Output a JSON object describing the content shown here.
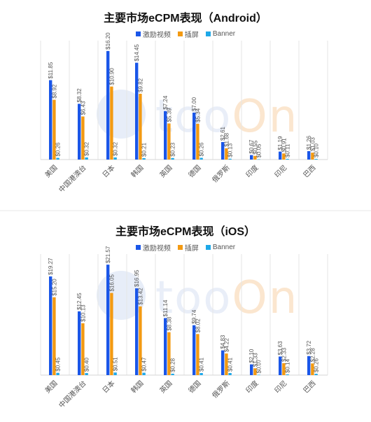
{
  "watermark": {
    "text_a": "too",
    "text_b": "On"
  },
  "chart_data": [
    {
      "type": "bar",
      "title": "主要市场eCPM表现（Android）",
      "categories": [
        "美国",
        "中国港澳台",
        "日本",
        "韩国",
        "英国",
        "德国",
        "俄罗斯",
        "印度",
        "印尼",
        "巴西"
      ],
      "ylim": [
        0,
        16.5
      ],
      "grid": "vertical separators",
      "legend": "top",
      "series": [
        {
          "name": "激励视频",
          "color": "#1a56e8",
          "values": [
            11.85,
            8.32,
            16.2,
            14.45,
            7.24,
            7.0,
            2.61,
            0.67,
            1.19,
            1.26
          ],
          "labels": [
            "$11.85",
            "$8.32",
            "$16.20",
            "$14.45",
            "$7.24",
            "$7.00",
            "$2.61",
            "$0.67",
            "$1.19",
            "$1.26"
          ]
        },
        {
          "name": "插屏",
          "color": "#f39a12",
          "values": [
            8.92,
            6.43,
            10.9,
            9.82,
            5.39,
            5.34,
            1.68,
            0.55,
            0.91,
            1.03
          ],
          "labels": [
            "$8.92",
            "$6.43",
            "$10.90",
            "$9.82",
            "$5.39",
            "$5.34",
            "$1.68",
            "$0.55",
            "$0.91",
            "$1.03"
          ]
        },
        {
          "name": "Banner",
          "color": "#1ea8e8",
          "values": [
            0.26,
            0.32,
            0.32,
            0.21,
            0.23,
            0.26,
            0.13,
            0.05,
            0.11,
            0.1
          ],
          "labels": [
            "$0.26",
            "$0.32",
            "$0.32",
            "$0.21",
            "$0.23",
            "$0.26",
            "$0.13",
            "$0.05",
            "$0.11",
            "$0.10"
          ]
        }
      ]
    },
    {
      "type": "bar",
      "title": "主要市场eCPM表现（iOS）",
      "categories": [
        "美国",
        "中国港澳台",
        "日本",
        "韩国",
        "英国",
        "德国",
        "俄罗斯",
        "印度",
        "印尼",
        "巴西"
      ],
      "ylim": [
        0,
        22
      ],
      "grid": "vertical separators",
      "legend": "top",
      "series": [
        {
          "name": "激励视频",
          "color": "#1a56e8",
          "values": [
            19.27,
            12.45,
            21.57,
            16.95,
            11.14,
            9.74,
            4.83,
            2.1,
            3.63,
            3.72
          ],
          "labels": [
            "$19.27",
            "$12.45",
            "$21.57",
            "$16.95",
            "$11.14",
            "$9.74",
            "$4.83",
            "$2.10",
            "$3.63",
            "$3.72"
          ]
        },
        {
          "name": "插屏",
          "color": "#f39a12",
          "values": [
            15.2,
            10.13,
            16.05,
            13.42,
            8.38,
            8.02,
            4.22,
            1.33,
            2.33,
            2.28
          ],
          "labels": [
            "$15.20",
            "$10.13",
            "$16.05",
            "$13.42",
            "$8.38",
            "$8.02",
            "$4.22",
            "$1.33",
            "$2.33",
            "$2.28"
          ]
        },
        {
          "name": "Banner",
          "color": "#1ea8e8",
          "values": [
            0.45,
            0.4,
            0.51,
            0.47,
            0.28,
            0.41,
            0.41,
            0.07,
            0.14,
            0.26
          ],
          "labels": [
            "$0.45",
            "$0.40",
            "$0.51",
            "$0.47",
            "$0.28",
            "$0.41",
            "$0.41",
            "$0.07",
            "$0.14",
            "$0.26"
          ]
        }
      ]
    }
  ]
}
